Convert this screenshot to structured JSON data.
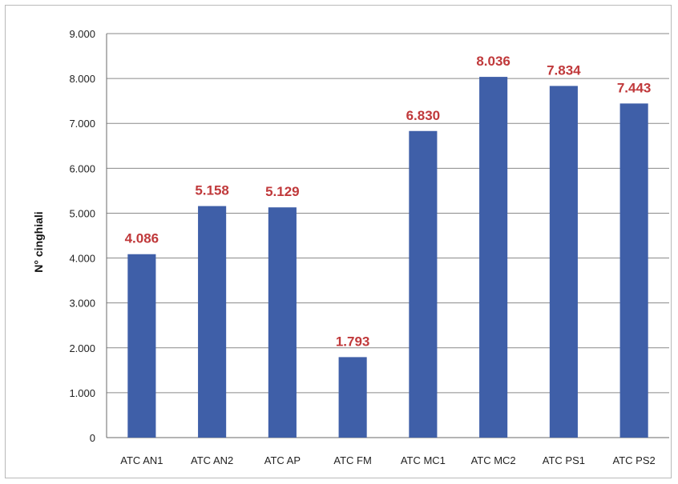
{
  "chart_data": {
    "type": "bar",
    "categories": [
      "ATC AN1",
      "ATC AN2",
      "ATC AP",
      "ATC FM",
      "ATC MC1",
      "ATC MC2",
      "ATC PS1",
      "ATC PS2"
    ],
    "values": [
      4086,
      5158,
      5129,
      1793,
      6830,
      8036,
      7834,
      7443
    ],
    "data_labels": [
      "4.086",
      "5.158",
      "5.129",
      "1.793",
      "6.830",
      "8.036",
      "7.834",
      "7.443"
    ],
    "title": "",
    "xlabel": "",
    "ylabel": "N° cinghiali",
    "ylim": [
      0,
      9000
    ],
    "yticks": [
      0,
      1000,
      2000,
      3000,
      4000,
      5000,
      6000,
      7000,
      8000,
      9000
    ],
    "ytick_labels": [
      "0",
      "1.000",
      "2.000",
      "3.000",
      "4.000",
      "5.000",
      "6.000",
      "7.000",
      "8.000",
      "9.000"
    ],
    "grid": true,
    "legend": "none",
    "colors": {
      "bar": "#3f5fa8",
      "data_label": "#c0393b"
    }
  }
}
